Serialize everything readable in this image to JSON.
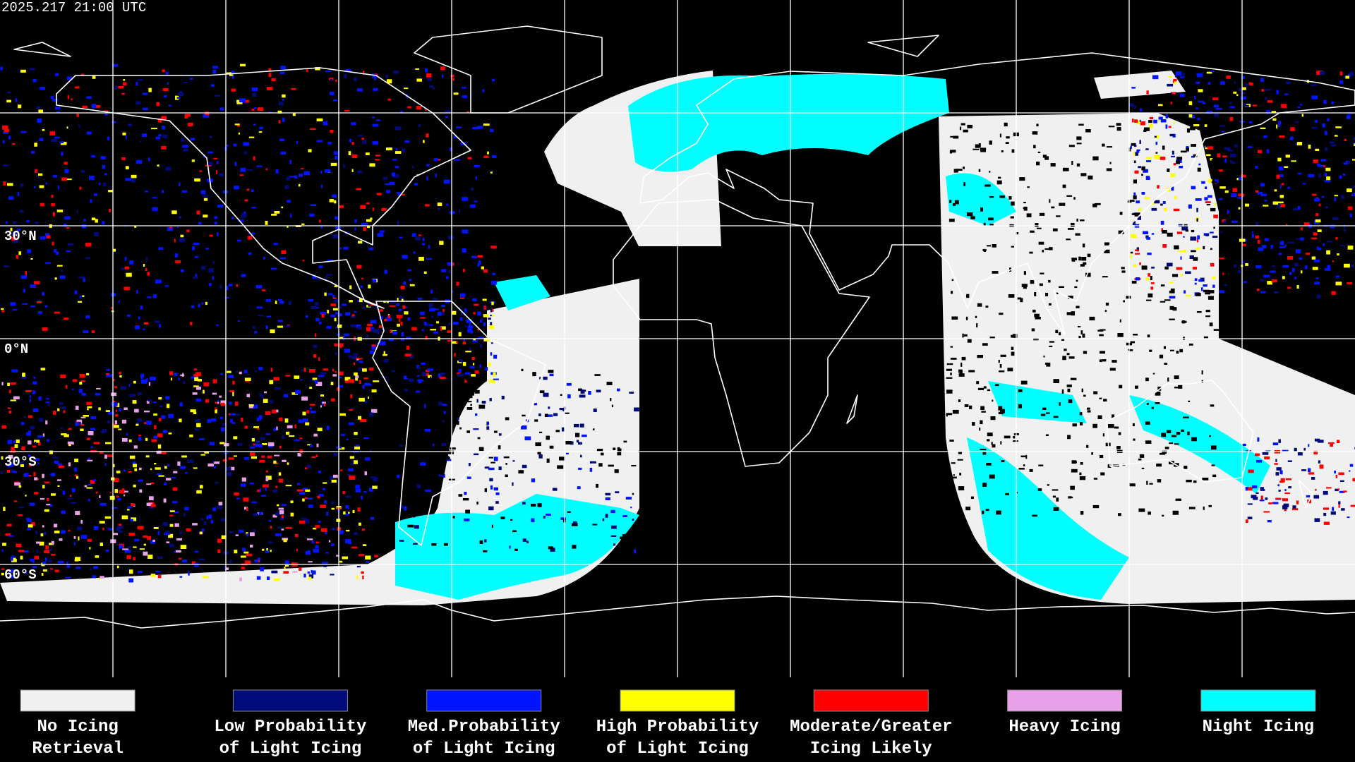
{
  "header": {
    "title": "2025.217 21:00 UTC"
  },
  "map": {
    "latitude_labels": [
      "30°N",
      "0°N",
      "30°S",
      "60°S"
    ]
  },
  "legend": {
    "items": [
      {
        "lines": [
          "No Icing",
          "Retrieval"
        ],
        "color": "#f0f0f0"
      },
      {
        "lines": [
          "Low Probability",
          "of Light Icing"
        ],
        "color": "#000a78"
      },
      {
        "lines": [
          "Med.Probability",
          "of Light Icing"
        ],
        "color": "#0014ff"
      },
      {
        "lines": [
          "High Probability",
          "of Light Icing"
        ],
        "color": "#ffff00"
      },
      {
        "lines": [
          "Moderate/Greater",
          "Icing Likely"
        ],
        "color": "#ff0000"
      },
      {
        "lines": [
          "Heavy Icing"
        ],
        "color": "#e8a0e8"
      },
      {
        "lines": [
          "Night Icing"
        ],
        "color": "#00ffff"
      }
    ]
  }
}
